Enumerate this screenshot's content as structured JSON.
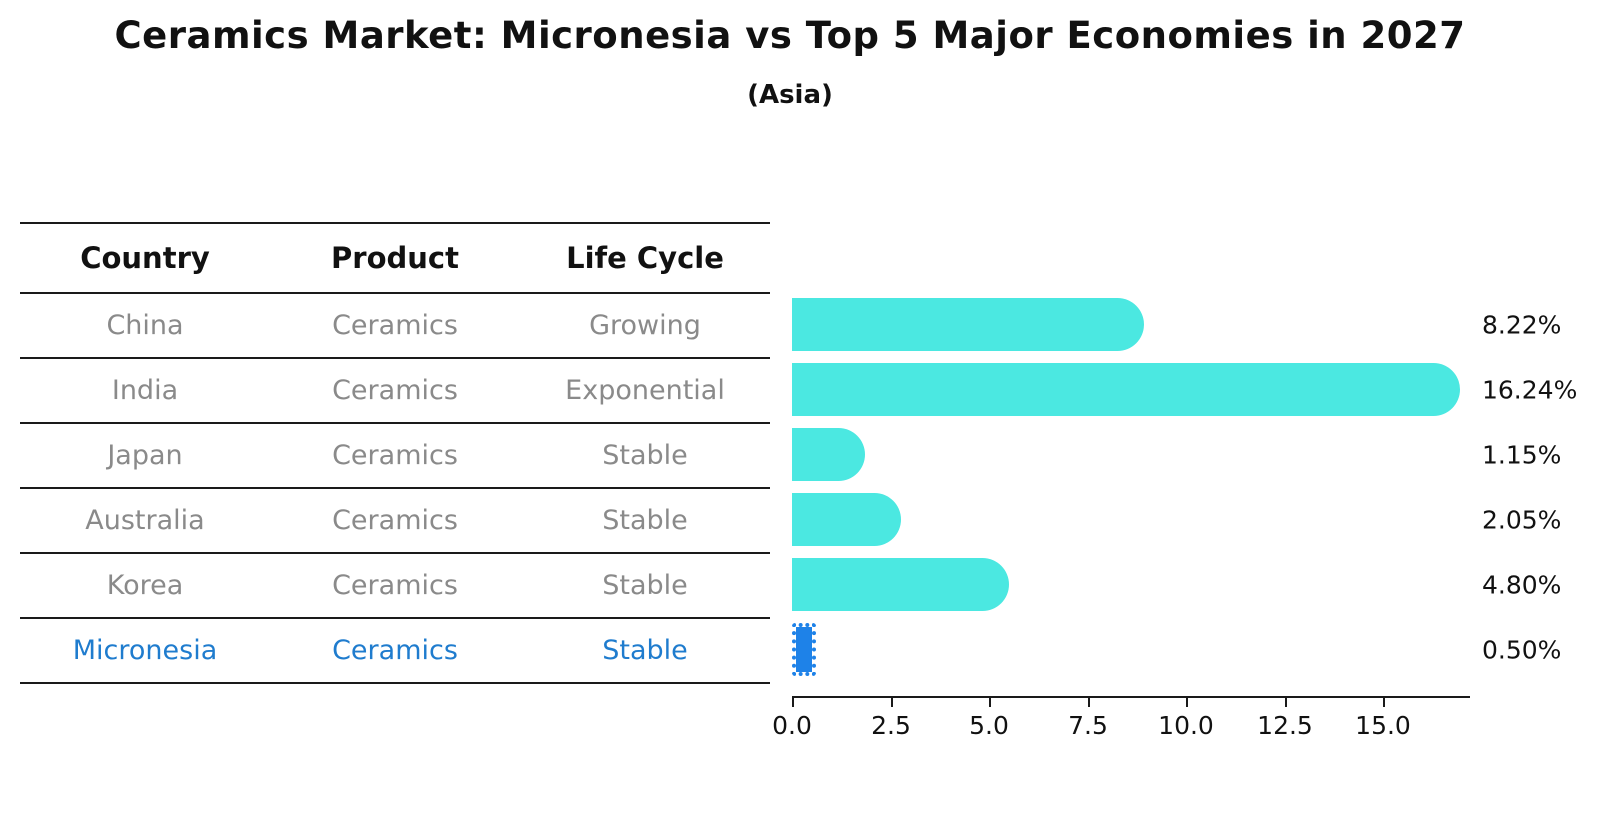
{
  "title": "Ceramics Market: Micronesia vs Top 5 Major Economies in 2027",
  "subtitle": "(Asia)",
  "table": {
    "headers": [
      "Country",
      "Product",
      "Life Cycle"
    ],
    "rows": [
      {
        "country": "China",
        "product": "Ceramics",
        "life_cycle": "Growing",
        "highlight": false
      },
      {
        "country": "India",
        "product": "Ceramics",
        "life_cycle": "Exponential",
        "highlight": false
      },
      {
        "country": "Japan",
        "product": "Ceramics",
        "life_cycle": "Stable",
        "highlight": false
      },
      {
        "country": "Australia",
        "product": "Ceramics",
        "life_cycle": "Stable",
        "highlight": false
      },
      {
        "country": "Korea",
        "product": "Ceramics",
        "life_cycle": "Stable",
        "highlight": false
      },
      {
        "country": "Micronesia",
        "product": "Ceramics",
        "life_cycle": "Stable",
        "highlight": true
      }
    ]
  },
  "chart_data": {
    "type": "bar",
    "orientation": "horizontal",
    "title": "Ceramics Market: Micronesia vs Top 5 Major Economies in 2027",
    "subtitle": "(Asia)",
    "categories": [
      "China",
      "India",
      "Japan",
      "Australia",
      "Korea",
      "Micronesia"
    ],
    "values": [
      8.22,
      16.24,
      1.15,
      2.05,
      4.8,
      0.5
    ],
    "value_labels": [
      "8.22%",
      "16.24%",
      "1.15%",
      "2.05%",
      "4.80%",
      "0.50%"
    ],
    "x_ticks": [
      0,
      2.5,
      5,
      7.5,
      10,
      12.5,
      15
    ],
    "x_tick_labels": [
      "0.0",
      "2.5",
      "5.0",
      "7.5",
      "10.0",
      "12.5",
      "15.0"
    ],
    "xlim": [
      0,
      17.2
    ],
    "highlight_index": 5,
    "grid": false,
    "legend": false
  },
  "colors": {
    "bar": "#4BE8E1",
    "highlight_bar": "#1E82E8",
    "highlight_text": "#1F7CCE",
    "cell_text": "#8a8a8a",
    "header_text": "#111111",
    "line": "#1a1a1a"
  }
}
